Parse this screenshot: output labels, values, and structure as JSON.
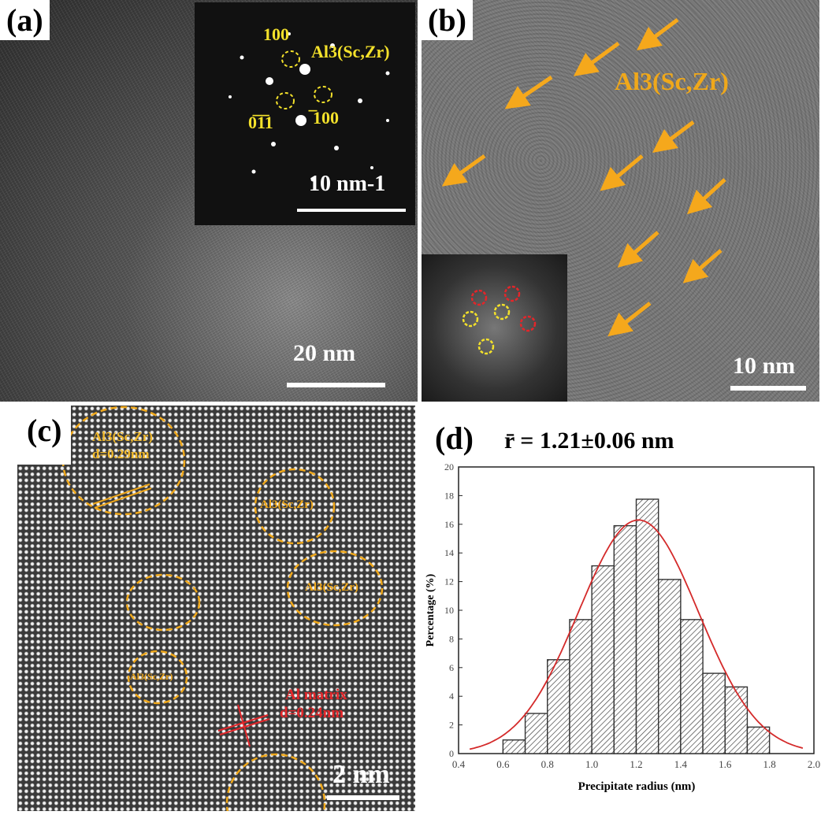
{
  "panels": {
    "a": {
      "label": "(a)",
      "scale_bar": "20 nm",
      "inset": {
        "spots": [
          "100",
          "Al3(Sc,Zr)",
          "0̅1̅1",
          "̅100"
        ],
        "scale_bar": "10 nm-1"
      }
    },
    "b": {
      "label": "(b)",
      "phase_label": "Al3(Sc,Zr)",
      "scale_bar": "10 nm"
    },
    "c": {
      "label": "(c)",
      "precipitate_label": "Al3(Sc,Zr)",
      "d_precipitate": "d=0.29nm",
      "matrix_label": "Al matrix",
      "d_matrix": "d=0.24nm",
      "scale_bar": "2 nm"
    },
    "d": {
      "label": "(d)",
      "mean_radius": "r̄ = 1.21±0.06 nm"
    }
  },
  "colors": {
    "bar_edge": "#333333",
    "fit": "#d42a2a",
    "precipitate": "#f0a81a",
    "matrix": "#e3262a"
  },
  "chart_data": {
    "type": "bar",
    "title": "r̄ = 1.21±0.06 nm",
    "xlabel": "Precipitate radius (nm)",
    "ylabel": "Percentage (%)",
    "xlim": [
      0.4,
      2.0
    ],
    "ylim": [
      0,
      20
    ],
    "xticks": [
      "0.4",
      "0.6",
      "0.8",
      "1.0",
      "1.2",
      "1.4",
      "1.6",
      "1.8",
      "2.0"
    ],
    "yticks": [
      "0",
      "2",
      "4",
      "6",
      "8",
      "10",
      "12",
      "14",
      "16",
      "18",
      "20"
    ],
    "bins": [
      [
        0.6,
        0.7
      ],
      [
        0.7,
        0.8
      ],
      [
        0.8,
        0.9
      ],
      [
        0.9,
        1.0
      ],
      [
        1.0,
        1.1
      ],
      [
        1.1,
        1.2
      ],
      [
        1.2,
        1.3
      ],
      [
        1.3,
        1.4
      ],
      [
        1.4,
        1.5
      ],
      [
        1.5,
        1.6
      ],
      [
        1.6,
        1.7
      ],
      [
        1.7,
        1.8
      ]
    ],
    "values": [
      0.95,
      2.8,
      6.55,
      9.35,
      13.1,
      15.9,
      17.75,
      12.15,
      9.35,
      5.6,
      4.65,
      1.85
    ],
    "fit": {
      "type": "gaussian",
      "mean": 1.21,
      "peak": 16.3,
      "sigma": 0.27
    }
  }
}
